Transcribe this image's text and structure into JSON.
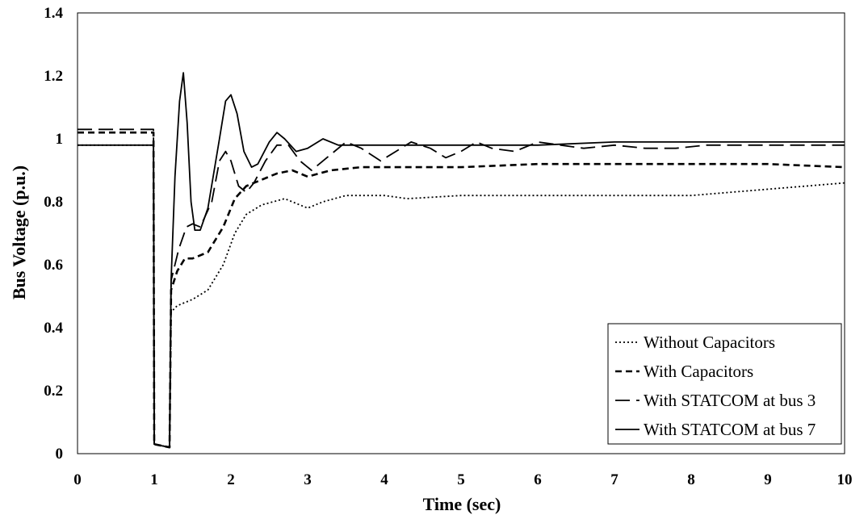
{
  "chart_data": {
    "type": "line",
    "title": "",
    "xlabel": "Time (sec)",
    "ylabel": "Bus Voltage (p.u.)",
    "xlim": [
      0,
      10
    ],
    "ylim": [
      0,
      1.4
    ],
    "xticks": [
      "0",
      "1",
      "2",
      "3",
      "4",
      "5",
      "6",
      "7",
      "8",
      "9",
      "10"
    ],
    "yticks": [
      "0",
      "0.2",
      "0.4",
      "0.6",
      "0.8",
      "1",
      "1.2",
      "1.4"
    ],
    "grid": false,
    "legend_position": "bottom-right",
    "series": [
      {
        "name": "Without Capacitors",
        "style": "dotted",
        "color": "#000000",
        "points": [
          [
            0,
            0.98
          ],
          [
            0.99,
            0.98
          ],
          [
            1.0,
            0.03
          ],
          [
            1.2,
            0.02
          ],
          [
            1.22,
            0.45
          ],
          [
            1.3,
            0.47
          ],
          [
            1.5,
            0.49
          ],
          [
            1.7,
            0.52
          ],
          [
            1.9,
            0.6
          ],
          [
            2.05,
            0.7
          ],
          [
            2.2,
            0.76
          ],
          [
            2.4,
            0.79
          ],
          [
            2.7,
            0.81
          ],
          [
            2.9,
            0.79
          ],
          [
            3.0,
            0.78
          ],
          [
            3.2,
            0.8
          ],
          [
            3.5,
            0.82
          ],
          [
            4.0,
            0.82
          ],
          [
            4.3,
            0.81
          ],
          [
            5.0,
            0.82
          ],
          [
            5.5,
            0.82
          ],
          [
            6.0,
            0.82
          ],
          [
            7.0,
            0.82
          ],
          [
            8.0,
            0.82
          ],
          [
            9.0,
            0.84
          ],
          [
            10.0,
            0.86
          ]
        ]
      },
      {
        "name": "With Capacitors",
        "style": "dashed",
        "color": "#000000",
        "points": [
          [
            0,
            1.02
          ],
          [
            0.99,
            1.02
          ],
          [
            1.0,
            0.03
          ],
          [
            1.2,
            0.02
          ],
          [
            1.22,
            0.52
          ],
          [
            1.3,
            0.58
          ],
          [
            1.4,
            0.62
          ],
          [
            1.5,
            0.62
          ],
          [
            1.7,
            0.64
          ],
          [
            1.9,
            0.72
          ],
          [
            2.05,
            0.81
          ],
          [
            2.2,
            0.85
          ],
          [
            2.4,
            0.87
          ],
          [
            2.6,
            0.89
          ],
          [
            2.8,
            0.9
          ],
          [
            3.0,
            0.88
          ],
          [
            3.3,
            0.9
          ],
          [
            3.7,
            0.91
          ],
          [
            4.0,
            0.91
          ],
          [
            5.0,
            0.91
          ],
          [
            6.0,
            0.92
          ],
          [
            7.0,
            0.92
          ],
          [
            8.0,
            0.92
          ],
          [
            9.0,
            0.92
          ],
          [
            10.0,
            0.91
          ]
        ]
      },
      {
        "name": "With STATCOM at bus 3",
        "style": "longdash",
        "color": "#000000",
        "points": [
          [
            0,
            1.03
          ],
          [
            0.99,
            1.03
          ],
          [
            1.0,
            0.03
          ],
          [
            1.2,
            0.02
          ],
          [
            1.22,
            0.55
          ],
          [
            1.32,
            0.65
          ],
          [
            1.42,
            0.72
          ],
          [
            1.5,
            0.73
          ],
          [
            1.6,
            0.72
          ],
          [
            1.75,
            0.8
          ],
          [
            1.85,
            0.93
          ],
          [
            1.93,
            0.96
          ],
          [
            2.0,
            0.93
          ],
          [
            2.1,
            0.85
          ],
          [
            2.2,
            0.83
          ],
          [
            2.3,
            0.86
          ],
          [
            2.45,
            0.93
          ],
          [
            2.6,
            0.98
          ],
          [
            2.75,
            0.98
          ],
          [
            2.9,
            0.93
          ],
          [
            3.05,
            0.9
          ],
          [
            3.2,
            0.93
          ],
          [
            3.5,
            0.99
          ],
          [
            3.7,
            0.97
          ],
          [
            3.95,
            0.93
          ],
          [
            4.15,
            0.96
          ],
          [
            4.35,
            0.99
          ],
          [
            4.6,
            0.97
          ],
          [
            4.8,
            0.94
          ],
          [
            5.0,
            0.96
          ],
          [
            5.2,
            0.99
          ],
          [
            5.4,
            0.97
          ],
          [
            5.7,
            0.96
          ],
          [
            6.0,
            0.99
          ],
          [
            6.3,
            0.98
          ],
          [
            6.6,
            0.97
          ],
          [
            7.0,
            0.98
          ],
          [
            7.4,
            0.97
          ],
          [
            7.8,
            0.97
          ],
          [
            8.2,
            0.98
          ],
          [
            8.6,
            0.98
          ],
          [
            9.0,
            0.98
          ],
          [
            9.5,
            0.98
          ],
          [
            10.0,
            0.98
          ]
        ]
      },
      {
        "name": "With STATCOM at bus 7",
        "style": "solid",
        "color": "#000000",
        "points": [
          [
            0,
            0.98
          ],
          [
            0.99,
            0.98
          ],
          [
            1.0,
            0.03
          ],
          [
            1.2,
            0.02
          ],
          [
            1.22,
            0.55
          ],
          [
            1.27,
            0.88
          ],
          [
            1.33,
            1.12
          ],
          [
            1.38,
            1.21
          ],
          [
            1.43,
            1.05
          ],
          [
            1.48,
            0.8
          ],
          [
            1.53,
            0.71
          ],
          [
            1.6,
            0.71
          ],
          [
            1.7,
            0.78
          ],
          [
            1.85,
            1.0
          ],
          [
            1.93,
            1.12
          ],
          [
            2.0,
            1.14
          ],
          [
            2.08,
            1.08
          ],
          [
            2.17,
            0.96
          ],
          [
            2.27,
            0.91
          ],
          [
            2.35,
            0.92
          ],
          [
            2.5,
            0.99
          ],
          [
            2.6,
            1.02
          ],
          [
            2.7,
            1.0
          ],
          [
            2.85,
            0.96
          ],
          [
            3.0,
            0.97
          ],
          [
            3.2,
            1.0
          ],
          [
            3.4,
            0.98
          ],
          [
            3.6,
            0.98
          ],
          [
            4.0,
            0.98
          ],
          [
            5.0,
            0.98
          ],
          [
            6.0,
            0.98
          ],
          [
            7.0,
            0.99
          ],
          [
            8.0,
            0.99
          ],
          [
            9.0,
            0.99
          ],
          [
            10.0,
            0.99
          ]
        ]
      }
    ]
  }
}
